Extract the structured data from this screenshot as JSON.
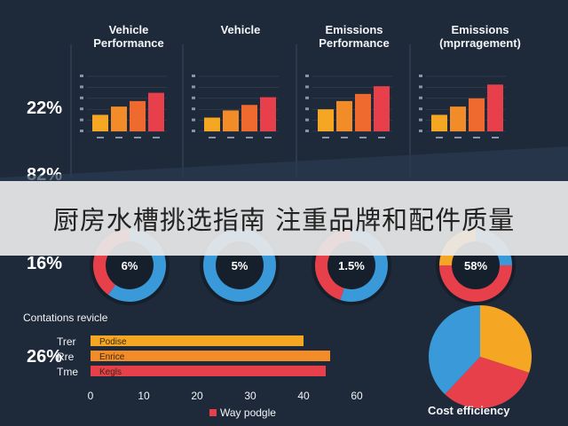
{
  "colors": {
    "background": "#1e2a3a",
    "bar_colors": [
      "#f5a623",
      "#f28c28",
      "#ef6a2e",
      "#e8404a"
    ],
    "donut_blue": "#3a9ad9",
    "donut_red": "#e8404a",
    "donut_track": "#16202d",
    "gridline": "#3b4a5e"
  },
  "panels": {
    "p1": {
      "title_line1": "Vehicle",
      "title_line2": "Performance"
    },
    "p2": {
      "title_line1": "Vehicle",
      "title_line2": ""
    },
    "p3": {
      "title_line1": "Emissions",
      "title_line2": "Performance"
    },
    "p4": {
      "title_line1": "Emissions",
      "title_line2": "(mprragement)"
    }
  },
  "left_percentages": [
    "22%",
    "82%",
    "16%",
    "26%"
  ],
  "banner": {
    "text": "厨房水槽挑选指南 注重品牌和配件质量"
  },
  "section_title": "Contations revicle",
  "hbar_legend": "Way podgle",
  "pie_caption": "Cost efficiency",
  "chart_data": [
    {
      "type": "bar",
      "title": "Vehicle Performance",
      "categories": [
        "1",
        "2",
        "3",
        "4"
      ],
      "values": [
        30,
        45,
        55,
        70
      ],
      "ylim": [
        0,
        100
      ],
      "grid": true
    },
    {
      "type": "bar",
      "title": "Vehicle",
      "categories": [
        "1",
        "2",
        "3",
        "4"
      ],
      "values": [
        25,
        38,
        48,
        62
      ],
      "ylim": [
        0,
        100
      ],
      "grid": true
    },
    {
      "type": "bar",
      "title": "Emissions Performance",
      "categories": [
        "1",
        "2",
        "3",
        "4"
      ],
      "values": [
        40,
        55,
        68,
        82
      ],
      "ylim": [
        0,
        100
      ],
      "grid": true
    },
    {
      "type": "bar",
      "title": "Emissions (mprragement)",
      "categories": [
        "1",
        "2",
        "3",
        "4"
      ],
      "values": [
        30,
        45,
        60,
        85
      ],
      "ylim": [
        0,
        100
      ],
      "grid": true
    },
    {
      "type": "pie",
      "label": "6%",
      "slices": [
        {
          "color": "#3a9ad9",
          "value": 60
        },
        {
          "color": "#e8404a",
          "value": 40
        }
      ]
    },
    {
      "type": "pie",
      "label": "5%",
      "slices": [
        {
          "color": "#3a9ad9",
          "value": 100
        }
      ]
    },
    {
      "type": "pie",
      "label": "1.5%",
      "slices": [
        {
          "color": "#3a9ad9",
          "value": 55
        },
        {
          "color": "#e8404a",
          "value": 45
        }
      ]
    },
    {
      "type": "pie",
      "label": "58%",
      "slices": [
        {
          "color": "#3a9ad9",
          "value": 25
        },
        {
          "color": "#e8404a",
          "value": 50
        },
        {
          "color": "#f5a623",
          "value": 25
        }
      ]
    },
    {
      "type": "bar",
      "orientation": "horizontal",
      "categories": [
        "Trer",
        "Rre",
        "Tme"
      ],
      "bar_labels": [
        "Podise",
        "Enrice",
        "Kegls"
      ],
      "values": [
        48,
        54,
        53
      ],
      "colors": [
        "#f5a623",
        "#f28c28",
        "#e8404a"
      ],
      "xticks": [
        0,
        10,
        20,
        30,
        40,
        60
      ],
      "xlim": [
        0,
        60
      ],
      "legend": "Way podgle"
    },
    {
      "type": "pie",
      "title": "Cost efficiency",
      "slices": [
        {
          "color": "#f5a623",
          "value": 30
        },
        {
          "color": "#e8404a",
          "value": 32
        },
        {
          "color": "#3a9ad9",
          "value": 38
        }
      ]
    }
  ]
}
